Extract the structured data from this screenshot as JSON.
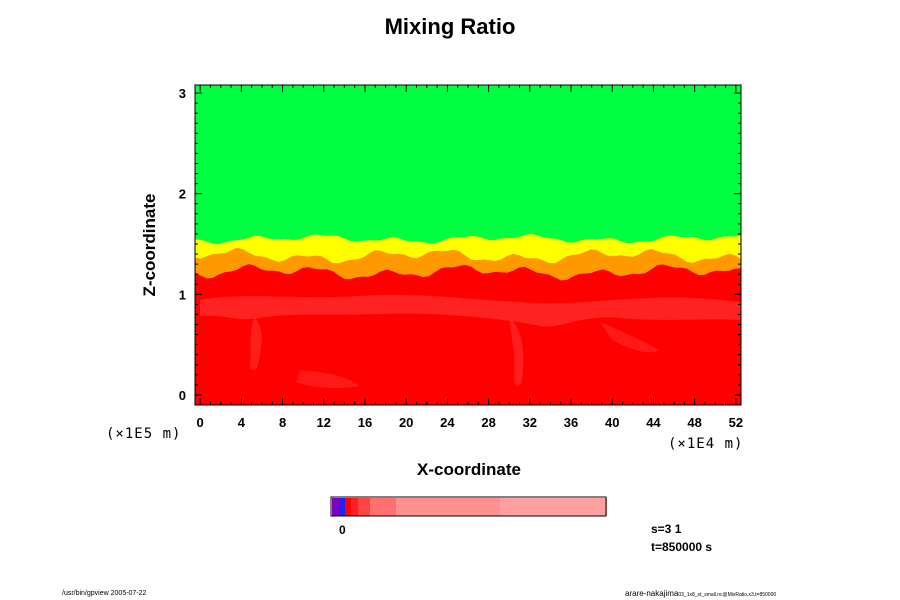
{
  "chart_data": {
    "type": "heatmap",
    "title": "Mixing Ratio",
    "xlabel": "X-coordinate",
    "ylabel": "Z-coordinate",
    "x_unit": "(×1E4 m)",
    "y_unit": "(×1E5 m)",
    "x_ticks": [
      0,
      4,
      8,
      12,
      16,
      20,
      24,
      28,
      32,
      36,
      40,
      44,
      48,
      52
    ],
    "y_ticks": [
      0,
      1,
      2,
      3
    ],
    "xlim": [
      -0.5,
      52.5
    ],
    "ylim": [
      -0.1,
      3.08
    ],
    "layers": [
      {
        "name": "green",
        "color": "#00ff40",
        "z_bottom": 1.55,
        "z_top": 3.08
      },
      {
        "name": "yellow",
        "color": "#ffff00",
        "z_bottom": 1.38,
        "z_top": 1.55
      },
      {
        "name": "orange",
        "color": "#ff9900",
        "z_bottom": 1.22,
        "z_top": 1.38
      },
      {
        "name": "red",
        "color": "#ff0000",
        "z_bottom": -0.1,
        "z_top": 1.22
      }
    ],
    "colorbar": {
      "colors": [
        "#8000c0",
        "#2020ff",
        "#ff0000",
        "#ff2020",
        "#ff4444",
        "#ff7070",
        "#ff9090",
        "#ffa0a0"
      ],
      "zero_label": "0"
    }
  },
  "info": {
    "s_label": "s=3 1",
    "t_label": "t=850000 s"
  },
  "footer": {
    "left": "/usr/bin/gpview 2005-07-22",
    "right_main": "arare-nakajima",
    "right_small": "03_1x8_st_small.nc@MixRatio,x3,t=850000"
  }
}
